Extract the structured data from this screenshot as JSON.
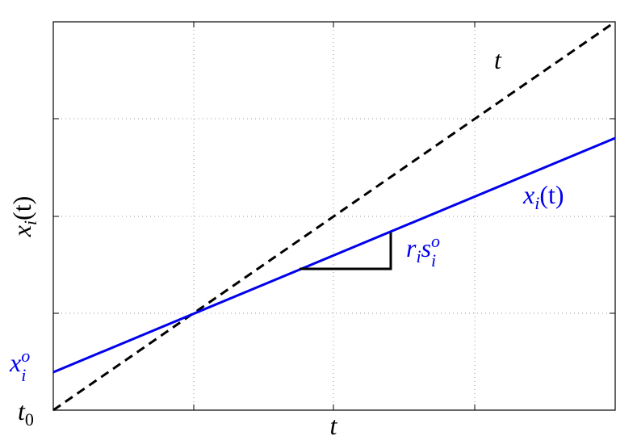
{
  "labels": {
    "line_t": "t",
    "blue_line": {
      "base": "x",
      "sub": "i",
      "tail": "(t)"
    },
    "slope": {
      "a": "r",
      "a_sub": "i",
      "b": "s",
      "b_sub": "i",
      "b_sup": "o"
    },
    "intercept": {
      "base": "x",
      "sub": "i",
      "sup": "o"
    },
    "origin": {
      "base": "t",
      "sub": "0"
    },
    "x_axis": "t",
    "y_axis": {
      "base": "x",
      "sub": "i",
      "tail": "(t)"
    }
  }
}
